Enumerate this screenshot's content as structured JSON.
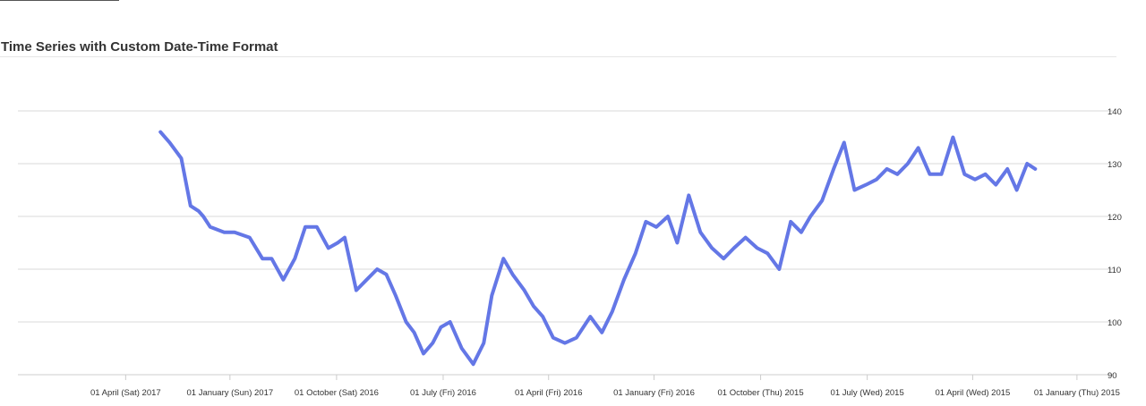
{
  "page": {
    "top_rule": true
  },
  "chart_data": {
    "type": "line",
    "title": "Time Series with Custom Date-Time Format",
    "xlabel": "",
    "ylabel": "",
    "x_axis": {
      "type": "date",
      "reversed": true,
      "range": [
        "2014-12-01",
        "2017-07-03"
      ],
      "tick_labels": [
        {
          "date": "2017-04-01",
          "label": "01 April (Sat) 2017"
        },
        {
          "date": "2017-01-01",
          "label": "01 January (Sun) 2017"
        },
        {
          "date": "2016-10-01",
          "label": "01 October (Sat) 2016"
        },
        {
          "date": "2016-07-01",
          "label": "01 July (Fri) 2016"
        },
        {
          "date": "2016-04-01",
          "label": "01 April (Fri) 2016"
        },
        {
          "date": "2016-01-01",
          "label": "01 January (Fri) 2016"
        },
        {
          "date": "2015-10-01",
          "label": "01 October (Thu) 2015"
        },
        {
          "date": "2015-07-01",
          "label": "01 July (Wed) 2015"
        },
        {
          "date": "2015-04-01",
          "label": "01 April (Wed) 2015"
        },
        {
          "date": "2015-01-01",
          "label": "01 January (Thu) 2015"
        }
      ]
    },
    "y_axis": {
      "position": "right",
      "range": [
        90,
        140
      ],
      "ticks": [
        90,
        100,
        110,
        120,
        130,
        140
      ],
      "tick_labels": [
        "90",
        "100",
        "110",
        "120",
        "130",
        "140"
      ]
    },
    "grid": "horizontal",
    "legend": "none",
    "line_color": "#6477e6",
    "series": [
      {
        "x": [
          "2017-03-02",
          "2017-02-22",
          "2017-02-12",
          "2017-02-04",
          "2017-01-28",
          "2017-01-24",
          "2017-01-18",
          "2017-01-06",
          "2016-12-28",
          "2016-12-15",
          "2016-12-04",
          "2016-11-26",
          "2016-11-16",
          "2016-11-06",
          "2016-10-28",
          "2016-10-18",
          "2016-10-08",
          "2016-09-30",
          "2016-09-24",
          "2016-09-14",
          "2016-09-05",
          "2016-08-27",
          "2016-08-19",
          "2016-08-11",
          "2016-08-02",
          "2016-07-26",
          "2016-07-18",
          "2016-07-10",
          "2016-07-03",
          "2016-06-25",
          "2016-06-15",
          "2016-06-05",
          "2016-05-27",
          "2016-05-20",
          "2016-05-10",
          "2016-05-02",
          "2016-04-22",
          "2016-04-14",
          "2016-04-06",
          "2016-03-28",
          "2016-03-18",
          "2016-03-08",
          "2016-02-25",
          "2016-02-15",
          "2016-02-06",
          "2016-01-27",
          "2016-01-17",
          "2016-01-08",
          "2015-12-30",
          "2015-12-20",
          "2015-12-12",
          "2015-12-02",
          "2015-11-22",
          "2015-11-12",
          "2015-11-02",
          "2015-10-24",
          "2015-10-14",
          "2015-10-04",
          "2015-09-25",
          "2015-09-15",
          "2015-09-05",
          "2015-08-27",
          "2015-08-19",
          "2015-08-09",
          "2015-07-30",
          "2015-07-21",
          "2015-07-12",
          "2015-07-02",
          "2015-06-23",
          "2015-06-14",
          "2015-06-05",
          "2015-05-27",
          "2015-05-18",
          "2015-05-08",
          "2015-04-28",
          "2015-04-18",
          "2015-04-08",
          "2015-03-30",
          "2015-03-21",
          "2015-03-12",
          "2015-03-02",
          "2015-02-22",
          "2015-02-13",
          "2015-02-06"
        ],
        "y": [
          136,
          134,
          131,
          122,
          121,
          120,
          118,
          117,
          117,
          116,
          112,
          112,
          108,
          112,
          118,
          118,
          114,
          115,
          116,
          106,
          108,
          110,
          109,
          105,
          100,
          98,
          94,
          96,
          99,
          100,
          95,
          92,
          96,
          105,
          112,
          109,
          106,
          103,
          101,
          97,
          96,
          97,
          101,
          98,
          102,
          108,
          113,
          119,
          118,
          120,
          115,
          124,
          117,
          114,
          112,
          114,
          116,
          114,
          113,
          110,
          119,
          117,
          120,
          123,
          129,
          134,
          125,
          126,
          127,
          129,
          128,
          130,
          133,
          128,
          128,
          135,
          128,
          127,
          128,
          126,
          129,
          125,
          130,
          129
        ]
      }
    ]
  }
}
